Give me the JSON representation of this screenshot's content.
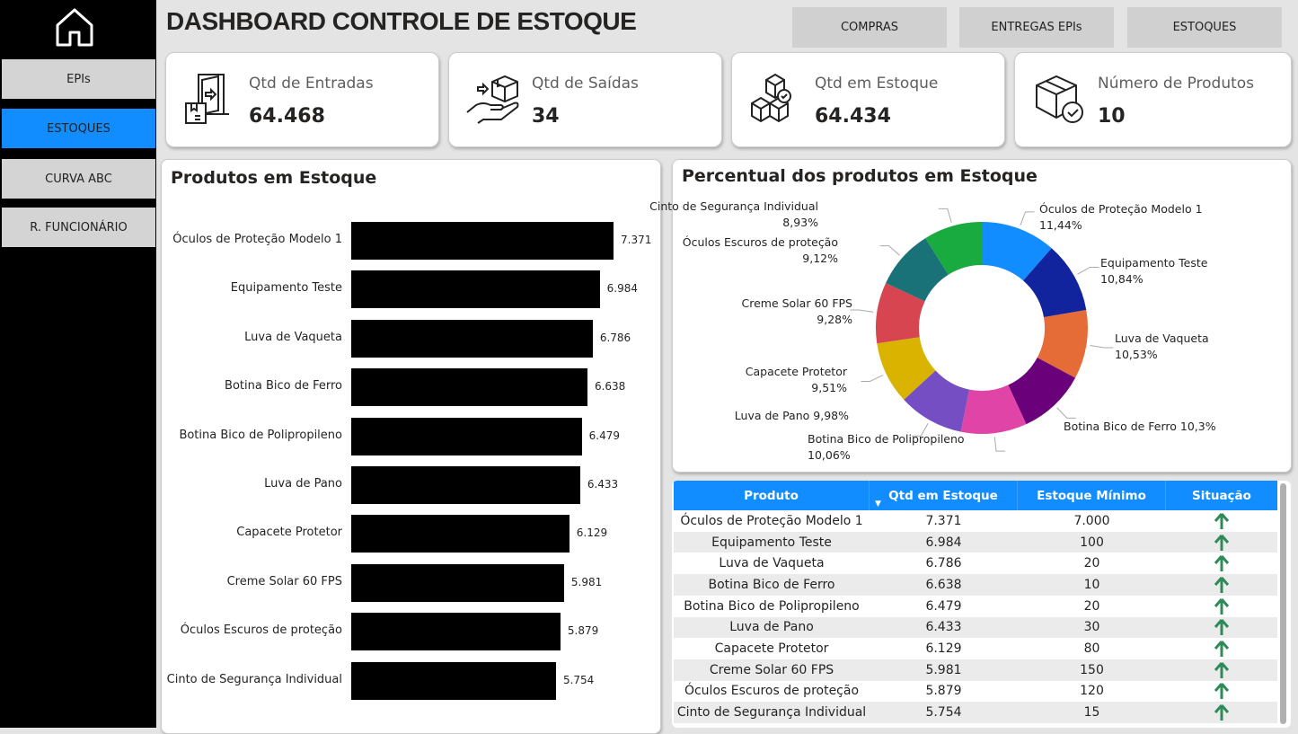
{
  "header": {
    "title": "DASHBOARD CONTROLE DE ESTOQUE",
    "buttons": [
      "COMPRAS",
      "ENTREGAS EPIs",
      "ESTOQUES"
    ]
  },
  "sidebar": {
    "home_icon": "home-icon",
    "items": [
      {
        "label": "EPIs",
        "active": false
      },
      {
        "label": "ESTOQUES",
        "active": true
      },
      {
        "label": "CURVA ABC",
        "active": false
      },
      {
        "label": "R. FUNCIONÁRIO",
        "active": false
      }
    ]
  },
  "kpis": [
    {
      "label": "Qtd de Entradas",
      "value": "64.468",
      "icon": "door-entry-box-icon"
    },
    {
      "label": "Qtd de Saídas",
      "value": "34",
      "icon": "hand-box-icon"
    },
    {
      "label": "Qtd em Estoque",
      "value": "64.434",
      "icon": "stacked-boxes-icon"
    },
    {
      "label": "Número de Produtos",
      "value": "10",
      "icon": "box-check-icon"
    }
  ],
  "colors": {
    "accent": "#118dff",
    "bar": "#000000",
    "arrow": "#2e8b57"
  },
  "chart_data": [
    {
      "type": "bar",
      "title": "Produtos em Estoque",
      "orientation": "horizontal",
      "categories": [
        "Óculos de Proteção Modelo 1",
        "Equipamento Teste",
        "Luva de Vaqueta",
        "Botina Bico de Ferro",
        "Botina Bico de Polipropileno",
        "Luva de Pano",
        "Capacete Protetor",
        "Creme Solar 60 FPS",
        "Óculos Escuros de proteção",
        "Cinto de Segurança Individual"
      ],
      "values": [
        7371,
        6984,
        6786,
        6638,
        6479,
        6433,
        6129,
        5981,
        5879,
        5754
      ],
      "labels": [
        "7.371",
        "6.984",
        "6.786",
        "6.638",
        "6.479",
        "6.433",
        "6.129",
        "5.981",
        "5.879",
        "5.754"
      ]
    },
    {
      "type": "pie",
      "donut": true,
      "title": "Percentual dos produtos em Estoque",
      "categories": [
        "Óculos de Proteção Modelo 1",
        "Equipamento Teste",
        "Luva de Vaqueta",
        "Botina Bico de Ferro",
        "Botina Bico de Polipropileno",
        "Luva de Pano",
        "Capacete Protetor",
        "Creme Solar 60 FPS",
        "Óculos Escuros de proteção",
        "Cinto de Segurança Individual"
      ],
      "values": [
        11.44,
        10.84,
        10.53,
        10.3,
        10.06,
        9.98,
        9.51,
        9.28,
        9.12,
        8.93
      ],
      "labels": [
        "11,44%",
        "10,84%",
        "10,53%",
        "10,3%",
        "10,06%",
        "9,98%",
        "9,51%",
        "9,28%",
        "9,12%",
        "8,93%"
      ],
      "colors": [
        "#118DFF",
        "#12239E",
        "#E66C37",
        "#6B007B",
        "#E044A7",
        "#744EC2",
        "#D9B300",
        "#D64550",
        "#197278",
        "#1AAB40"
      ]
    }
  ],
  "table": {
    "headers": [
      "Produto",
      "Qtd em Estoque",
      "Estoque Mínimo",
      "Situação"
    ],
    "rows": [
      [
        "Óculos de Proteção Modelo 1",
        "7.371",
        "7.000",
        "up"
      ],
      [
        "Equipamento Teste",
        "6.984",
        "100",
        "up"
      ],
      [
        "Luva de Vaqueta",
        "6.786",
        "20",
        "up"
      ],
      [
        "Botina Bico de Ferro",
        "6.638",
        "10",
        "up"
      ],
      [
        "Botina Bico de Polipropileno",
        "6.479",
        "20",
        "up"
      ],
      [
        "Luva de Pano",
        "6.433",
        "30",
        "up"
      ],
      [
        "Capacete Protetor",
        "6.129",
        "80",
        "up"
      ],
      [
        "Creme Solar 60 FPS",
        "5.981",
        "150",
        "up"
      ],
      [
        "Óculos Escuros de proteção",
        "5.879",
        "120",
        "up"
      ],
      [
        "Cinto de Segurança Individual",
        "5.754",
        "15",
        "up"
      ]
    ]
  }
}
